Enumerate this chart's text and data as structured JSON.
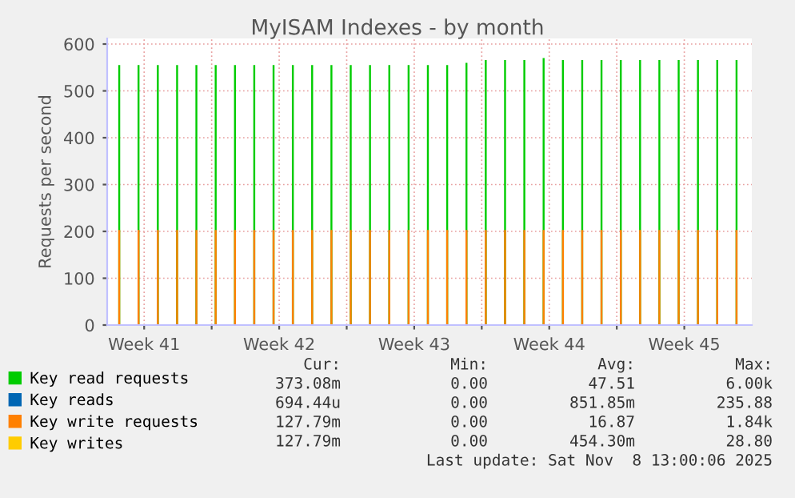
{
  "chart_data": {
    "type": "bar",
    "title": "MyISAM Indexes - by month",
    "ylabel": "Requests per second",
    "x": [
      "2025-10-08T05:00",
      "2025-10-09T05:00",
      "2025-10-10T05:00",
      "2025-10-11T05:00",
      "2025-10-12T05:00",
      "2025-10-13T05:00",
      "2025-10-14T05:00",
      "2025-10-15T05:00",
      "2025-10-16T05:00",
      "2025-10-17T05:00",
      "2025-10-18T05:00",
      "2025-10-19T05:00",
      "2025-10-20T05:00",
      "2025-10-21T05:00",
      "2025-10-22T05:00",
      "2025-10-23T05:00",
      "2025-10-24T05:00",
      "2025-10-25T05:00",
      "2025-10-26T05:00",
      "2025-10-27T05:00",
      "2025-10-28T05:00",
      "2025-10-29T05:00",
      "2025-10-30T05:00",
      "2025-10-31T05:00",
      "2025-11-01T05:00",
      "2025-11-02T05:00",
      "2025-11-03T05:00",
      "2025-11-04T05:00",
      "2025-11-05T05:00",
      "2025-11-06T05:00",
      "2025-11-07T05:00",
      "2025-11-08T05:00",
      "2025-11-09T05:00"
    ],
    "series": [
      {
        "name": "Key read requests",
        "color": "#00cc00",
        "values": [
          555,
          555,
          555,
          555,
          555,
          555,
          555,
          555,
          555,
          555,
          555,
          555,
          555,
          555,
          555,
          555,
          555,
          555,
          560,
          566,
          566,
          566,
          570,
          566,
          566,
          566,
          566,
          566,
          566,
          566,
          566,
          566,
          566
        ]
      },
      {
        "name": "Key reads",
        "color": "#0066b3",
        "values": [
          0,
          0,
          0,
          0,
          0,
          0,
          0,
          0,
          0,
          0,
          0,
          0,
          0,
          0,
          0,
          0,
          0,
          0,
          0,
          0,
          0,
          0,
          0,
          0,
          0,
          0,
          0,
          0,
          0,
          0,
          0,
          0,
          0
        ]
      },
      {
        "name": "Key write requests",
        "color": "#ff8000",
        "values": [
          203,
          203,
          203,
          203,
          203,
          203,
          203,
          203,
          203,
          203,
          203,
          203,
          203,
          203,
          203,
          203,
          203,
          203,
          203,
          203,
          203,
          203,
          203,
          203,
          203,
          203,
          203,
          203,
          203,
          203,
          203,
          203,
          203
        ]
      },
      {
        "name": "Key writes",
        "color": "#ffcc00",
        "values": [
          0,
          0,
          0,
          0,
          0,
          0,
          0,
          0,
          0,
          0,
          0,
          0,
          0,
          0,
          0,
          0,
          0,
          0,
          0,
          0,
          0,
          0,
          0,
          0,
          0,
          0,
          0,
          0,
          0,
          0,
          0,
          0,
          0
        ]
      }
    ],
    "xlim": [
      "2025-10-07T14:00",
      "2025-11-10T00:00"
    ],
    "xticks": [
      {
        "value": "2025-10-09T12:00",
        "label": "Week 41"
      },
      {
        "value": "2025-10-13T00:00",
        "label": null
      },
      {
        "value": "2025-10-16T12:00",
        "label": "Week 42"
      },
      {
        "value": "2025-10-20T00:00",
        "label": null
      },
      {
        "value": "2025-10-23T12:00",
        "label": "Week 43"
      },
      {
        "value": "2025-10-27T00:00",
        "label": null
      },
      {
        "value": "2025-10-30T12:00",
        "label": "Week 44"
      },
      {
        "value": "2025-11-03T00:00",
        "label": null
      },
      {
        "value": "2025-11-06T12:00",
        "label": "Week 45"
      }
    ],
    "ylim": [
      0,
      612
    ],
    "yticks": [
      0,
      100,
      200,
      300,
      400,
      500,
      600
    ],
    "grid": true,
    "legend": "bottom",
    "annotations": [
      "Cur:",
      "Min:",
      "Avg:",
      "Max:",
      "373.08m",
      "0.00",
      "47.51",
      "6.00k",
      "694.44u",
      "0.00",
      "851.85m",
      "235.88",
      "127.79m",
      "0.00",
      "16.87",
      "1.84k",
      "127.79m",
      "0.00",
      "454.30m",
      "28.80",
      "Last update: Sat Nov  8 13:00:06 2025"
    ]
  }
}
